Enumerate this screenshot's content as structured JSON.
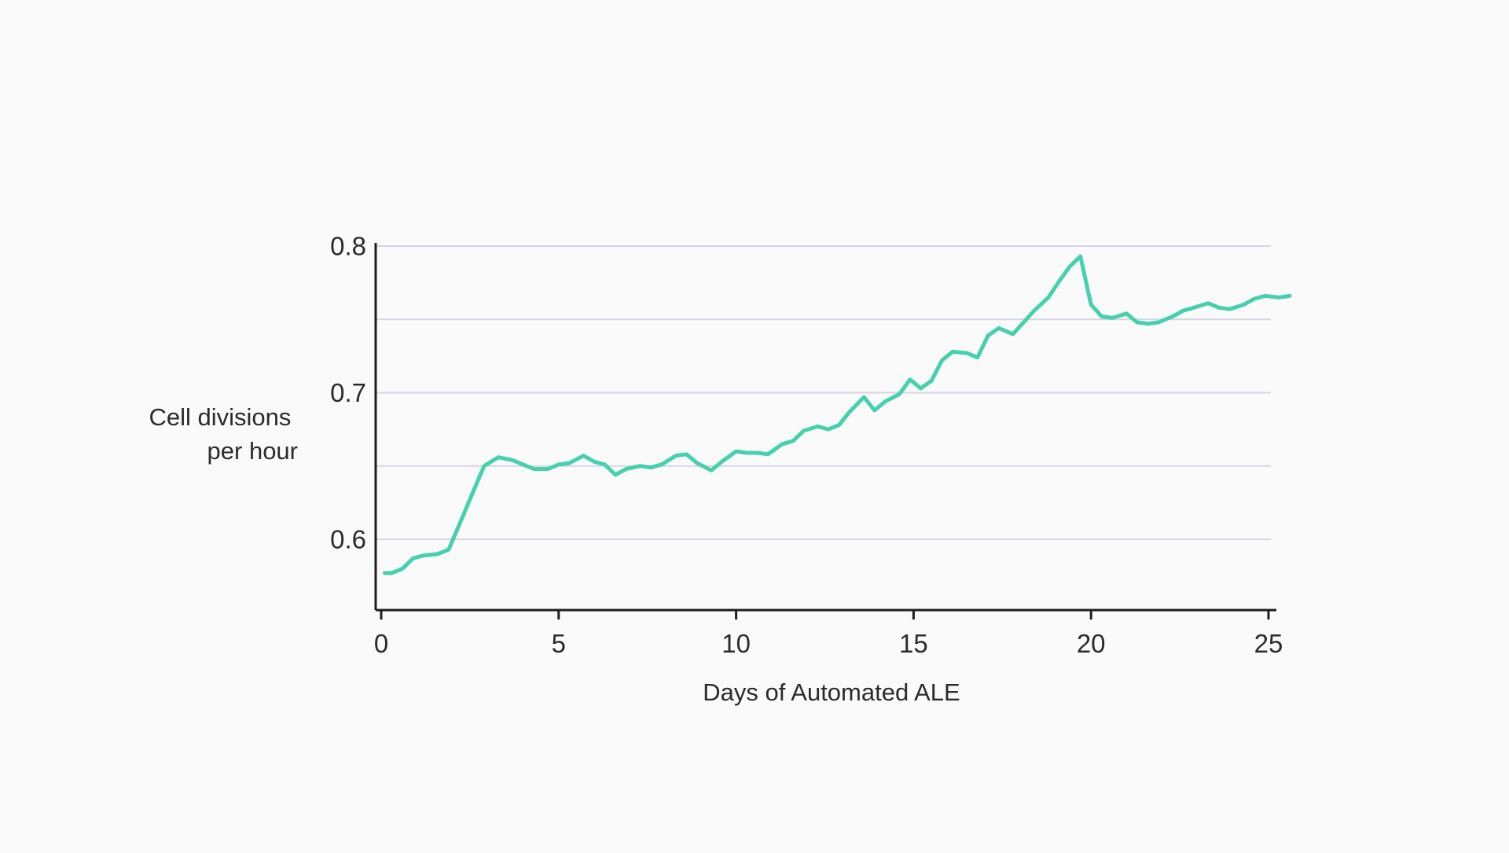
{
  "chart_data": {
    "type": "line",
    "title": "",
    "xlabel": "Days of Automated ALE",
    "ylabel_lines": [
      "Cell divisions",
      "per hour"
    ],
    "xlim": [
      0,
      26
    ],
    "ylim": [
      0.552,
      0.8
    ],
    "x_ticks": [
      0,
      5,
      10,
      15,
      20,
      25
    ],
    "y_ticks": [
      0.6,
      0.7,
      0.8
    ],
    "y_tick_labels": [
      "0.6",
      "0.7",
      "0.8"
    ],
    "gridlines_y": [
      0.6,
      0.65,
      0.7,
      0.75,
      0.8
    ],
    "grid": true,
    "line_color": "#45d1ac",
    "grid_color": "#d5d6e2",
    "axis_color": "#1e1e1e",
    "series": [
      {
        "x": [
          0.1,
          0.3,
          0.6,
          0.9,
          1.2,
          1.6,
          1.9,
          2.2,
          2.6,
          2.9,
          3.3,
          3.7,
          4.0,
          4.3,
          4.7,
          5.0,
          5.3,
          5.7,
          6.0,
          6.3,
          6.6,
          6.9,
          7.3,
          7.6,
          7.9,
          8.3,
          8.6,
          8.9,
          9.3,
          9.6,
          10.0,
          10.3,
          10.6,
          10.9,
          11.3,
          11.6,
          11.9,
          12.3,
          12.6,
          12.9,
          13.2,
          13.6,
          13.9,
          14.2,
          14.6,
          14.9,
          15.2,
          15.5,
          15.8,
          16.1,
          16.5,
          16.8,
          17.1,
          17.4,
          17.8,
          18.1,
          18.4,
          18.8,
          19.1,
          19.4,
          19.7,
          20.0,
          20.3,
          20.6,
          21.0,
          21.3,
          21.6,
          21.9,
          22.3,
          22.6,
          22.9,
          23.3,
          23.6,
          23.9,
          24.3,
          24.6,
          24.9,
          25.3,
          25.6
        ],
        "y": [
          0.577,
          0.577,
          0.58,
          0.587,
          0.589,
          0.59,
          0.593,
          0.61,
          0.633,
          0.65,
          0.656,
          0.654,
          0.651,
          0.648,
          0.648,
          0.651,
          0.652,
          0.657,
          0.653,
          0.651,
          0.644,
          0.648,
          0.65,
          0.649,
          0.651,
          0.657,
          0.658,
          0.652,
          0.647,
          0.653,
          0.66,
          0.659,
          0.659,
          0.658,
          0.665,
          0.667,
          0.674,
          0.677,
          0.675,
          0.678,
          0.687,
          0.697,
          0.688,
          0.694,
          0.699,
          0.709,
          0.703,
          0.708,
          0.722,
          0.728,
          0.727,
          0.724,
          0.739,
          0.744,
          0.74,
          0.748,
          0.756,
          0.765,
          0.776,
          0.786,
          0.793,
          0.76,
          0.752,
          0.751,
          0.754,
          0.748,
          0.747,
          0.748,
          0.752,
          0.756,
          0.758,
          0.761,
          0.758,
          0.757,
          0.76,
          0.764,
          0.766,
          0.765,
          0.766
        ]
      }
    ]
  }
}
